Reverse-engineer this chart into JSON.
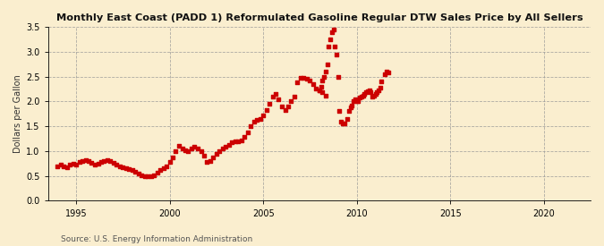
{
  "title": "Monthly East Coast (PADD 1) Reformulated Gasoline Regular DTW Sales Price by All Sellers",
  "ylabel": "Dollars per Gallon",
  "source": "Source: U.S. Energy Information Administration",
  "background_color": "#faeecf",
  "marker_color": "#cc0000",
  "xlim": [
    1993.5,
    2022.5
  ],
  "ylim": [
    0.0,
    3.5
  ],
  "yticks": [
    0.0,
    0.5,
    1.0,
    1.5,
    2.0,
    2.5,
    3.0,
    3.5
  ],
  "xticks": [
    1995,
    2000,
    2005,
    2010,
    2015,
    2020
  ],
  "data": [
    [
      1994.0,
      0.7
    ],
    [
      1994.17,
      0.72
    ],
    [
      1994.33,
      0.7
    ],
    [
      1994.5,
      0.68
    ],
    [
      1994.67,
      0.72
    ],
    [
      1994.83,
      0.75
    ],
    [
      1995.0,
      0.72
    ],
    [
      1995.17,
      0.78
    ],
    [
      1995.33,
      0.8
    ],
    [
      1995.5,
      0.82
    ],
    [
      1995.67,
      0.8
    ],
    [
      1995.83,
      0.76
    ],
    [
      1996.0,
      0.72
    ],
    [
      1996.17,
      0.74
    ],
    [
      1996.33,
      0.78
    ],
    [
      1996.5,
      0.8
    ],
    [
      1996.67,
      0.82
    ],
    [
      1996.83,
      0.8
    ],
    [
      1997.0,
      0.76
    ],
    [
      1997.17,
      0.72
    ],
    [
      1997.33,
      0.7
    ],
    [
      1997.5,
      0.68
    ],
    [
      1997.67,
      0.66
    ],
    [
      1997.83,
      0.64
    ],
    [
      1998.0,
      0.62
    ],
    [
      1998.17,
      0.58
    ],
    [
      1998.33,
      0.54
    ],
    [
      1998.5,
      0.52
    ],
    [
      1998.67,
      0.5
    ],
    [
      1998.83,
      0.5
    ],
    [
      1999.0,
      0.5
    ],
    [
      1999.17,
      0.52
    ],
    [
      1999.33,
      0.56
    ],
    [
      1999.5,
      0.62
    ],
    [
      1999.67,
      0.65
    ],
    [
      1999.83,
      0.7
    ],
    [
      2000.0,
      0.78
    ],
    [
      2000.17,
      0.88
    ],
    [
      2000.33,
      1.0
    ],
    [
      2000.5,
      1.1
    ],
    [
      2000.67,
      1.05
    ],
    [
      2000.83,
      1.02
    ],
    [
      2001.0,
      1.0
    ],
    [
      2001.17,
      1.05
    ],
    [
      2001.33,
      1.08
    ],
    [
      2001.5,
      1.05
    ],
    [
      2001.67,
      1.0
    ],
    [
      2001.83,
      0.9
    ],
    [
      2002.0,
      0.78
    ],
    [
      2002.17,
      0.8
    ],
    [
      2002.33,
      0.88
    ],
    [
      2002.5,
      0.95
    ],
    [
      2002.67,
      1.0
    ],
    [
      2002.83,
      1.05
    ],
    [
      2003.0,
      1.08
    ],
    [
      2003.17,
      1.12
    ],
    [
      2003.33,
      1.18
    ],
    [
      2003.5,
      1.2
    ],
    [
      2003.67,
      1.2
    ],
    [
      2003.83,
      1.22
    ],
    [
      2004.0,
      1.28
    ],
    [
      2004.17,
      1.38
    ],
    [
      2004.33,
      1.5
    ],
    [
      2004.5,
      1.6
    ],
    [
      2004.67,
      1.62
    ],
    [
      2004.83,
      1.65
    ],
    [
      2005.0,
      1.72
    ],
    [
      2005.17,
      1.82
    ],
    [
      2005.33,
      1.95
    ],
    [
      2005.5,
      2.1
    ],
    [
      2005.67,
      2.15
    ],
    [
      2005.83,
      2.05
    ],
    [
      2006.0,
      1.9
    ],
    [
      2006.17,
      1.82
    ],
    [
      2006.33,
      1.9
    ],
    [
      2006.5,
      2.0
    ],
    [
      2006.67,
      2.1
    ],
    [
      2006.83,
      2.38
    ],
    [
      2007.0,
      2.48
    ],
    [
      2007.17,
      2.48
    ],
    [
      2007.33,
      2.45
    ],
    [
      2007.5,
      2.42
    ],
    [
      2007.67,
      2.35
    ],
    [
      2007.83,
      2.25
    ],
    [
      2008.0,
      2.22
    ],
    [
      2008.17,
      2.18
    ],
    [
      2008.33,
      2.12
    ],
    [
      2008.0,
      2.22
    ],
    [
      2008.08,
      2.3
    ],
    [
      2008.17,
      2.42
    ],
    [
      2008.25,
      2.5
    ],
    [
      2008.33,
      2.6
    ],
    [
      2008.42,
      2.75
    ],
    [
      2008.5,
      3.1
    ],
    [
      2008.58,
      3.25
    ],
    [
      2008.67,
      3.4
    ],
    [
      2008.75,
      3.45
    ],
    [
      2008.83,
      3.1
    ],
    [
      2008.92,
      2.95
    ],
    [
      2009.0,
      2.5
    ],
    [
      2009.08,
      1.8
    ],
    [
      2009.17,
      1.6
    ],
    [
      2009.25,
      1.55
    ],
    [
      2009.33,
      1.55
    ],
    [
      2009.5,
      1.65
    ],
    [
      2009.58,
      1.8
    ],
    [
      2009.67,
      1.88
    ],
    [
      2009.75,
      1.92
    ],
    [
      2009.83,
      2.0
    ],
    [
      2009.92,
      2.05
    ],
    [
      2010.0,
      2.0
    ],
    [
      2010.08,
      2.0
    ],
    [
      2010.17,
      2.08
    ],
    [
      2010.25,
      2.1
    ],
    [
      2010.33,
      2.12
    ],
    [
      2010.42,
      2.15
    ],
    [
      2010.5,
      2.18
    ],
    [
      2010.58,
      2.2
    ],
    [
      2010.67,
      2.22
    ],
    [
      2010.75,
      2.18
    ],
    [
      2010.83,
      2.1
    ],
    [
      2010.92,
      2.12
    ],
    [
      2011.0,
      2.15
    ],
    [
      2011.08,
      2.18
    ],
    [
      2011.17,
      2.22
    ],
    [
      2011.25,
      2.28
    ],
    [
      2011.33,
      2.4
    ],
    [
      2011.5,
      2.55
    ],
    [
      2011.58,
      2.6
    ],
    [
      2011.67,
      2.58
    ]
  ]
}
